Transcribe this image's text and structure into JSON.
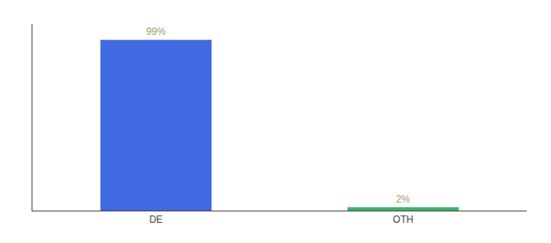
{
  "chart_data": {
    "type": "bar",
    "categories": [
      "DE",
      "OTH"
    ],
    "values": [
      99,
      2
    ],
    "value_labels": [
      "99%",
      "2%"
    ],
    "colors": [
      "#4169e1",
      "#3cb371"
    ],
    "data_labels": true,
    "ylim": [
      0,
      108
    ],
    "yticks": [],
    "tick_labels": "x",
    "grid": false
  }
}
